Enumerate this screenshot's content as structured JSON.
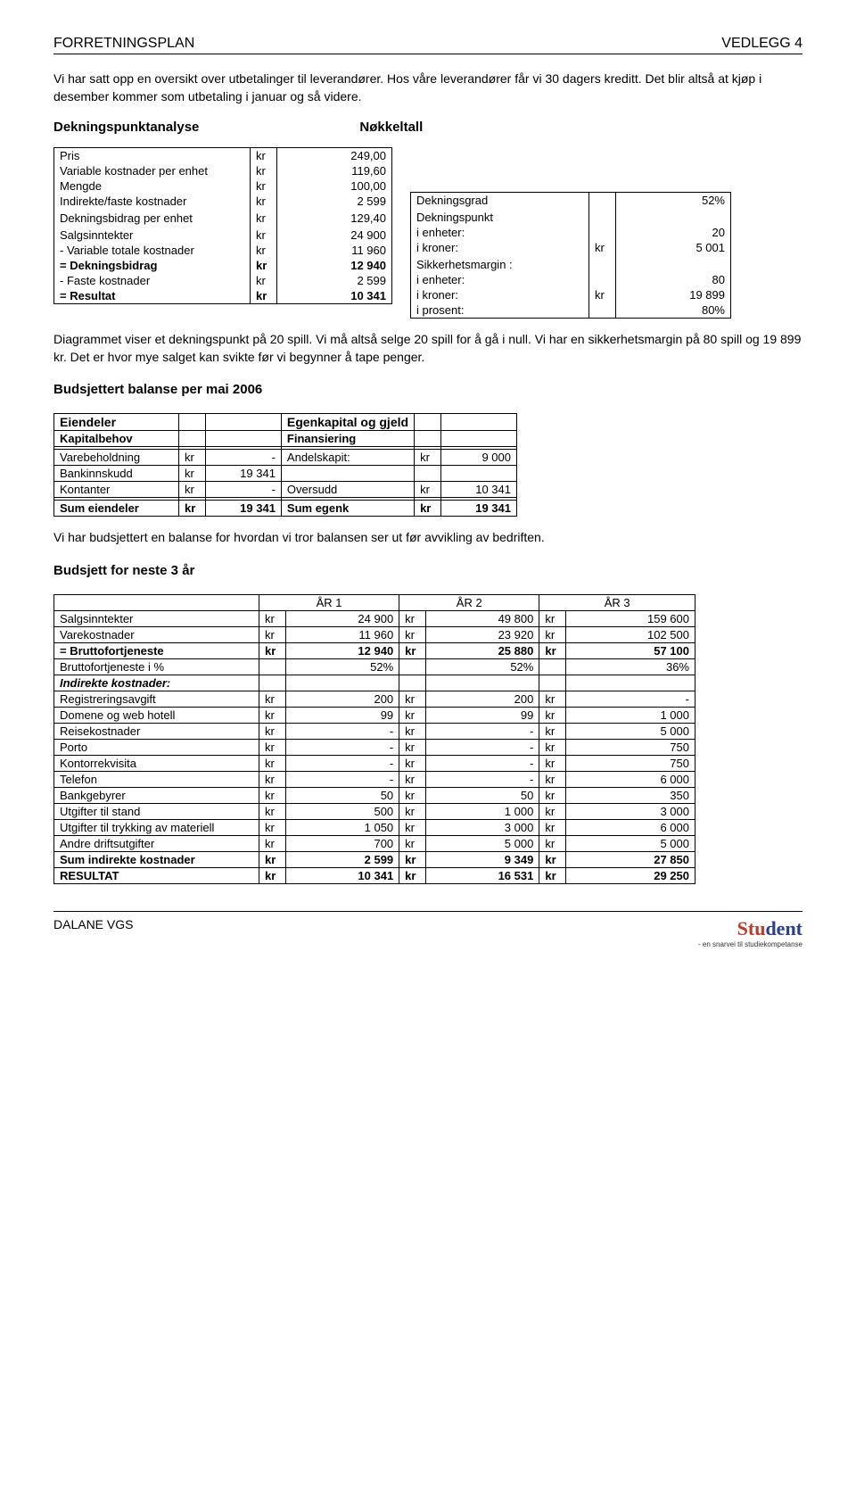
{
  "header": {
    "left": "FORRETNINGSPLAN",
    "right": "VEDLEGG 4"
  },
  "intro": "Vi har satt opp en oversikt over utbetalinger til leverandører. Hos våre leverandører får vi 30 dagers kreditt. Det blir altså at kjøp i desember kommer som utbetaling i januar og så videre.",
  "sec1": {
    "a": "Dekningspunktanalyse",
    "b": "Nøkkeltall"
  },
  "dek": {
    "rows": [
      [
        "Pris",
        "kr",
        "249,00"
      ],
      [
        "Variable kostnader per enhet",
        "kr",
        "119,60"
      ],
      [
        "Mengde",
        "kr",
        "100,00"
      ],
      [
        "Indirekte/faste kostnader",
        "kr",
        "2 599"
      ],
      [
        "",
        "",
        ""
      ],
      [
        "Dekningsbidrag per enhet",
        "kr",
        "129,40"
      ],
      [
        "",
        "",
        ""
      ],
      [
        "Salgsinntekter",
        "kr",
        "24 900"
      ],
      [
        "- Variable totale kostnader",
        "kr",
        "11 960"
      ],
      [
        "= Dekningsbidrag",
        "kr",
        "12 940"
      ],
      [
        "- Faste kostnader",
        "kr",
        "2 599"
      ],
      [
        "= Resultat",
        "kr",
        "10 341"
      ]
    ],
    "bold": [
      9,
      11
    ]
  },
  "nok": {
    "rows": [
      [
        "Dekningsgrad",
        "",
        "52%"
      ],
      [
        "",
        "",
        ""
      ],
      [
        "Dekningspunkt",
        "",
        ""
      ],
      [
        "   i enheter:",
        "",
        "20"
      ],
      [
        "   i kroner:",
        "kr",
        "5 001"
      ],
      [
        "",
        "",
        ""
      ],
      [
        "Sikkerhetsmargin :",
        "",
        ""
      ],
      [
        "   i enheter:",
        "",
        "80"
      ],
      [
        "   i kroner:",
        "kr",
        "19 899"
      ],
      [
        "   i prosent:",
        "",
        "80%"
      ]
    ]
  },
  "mid": "Diagrammet viser et dekningspunkt på 20 spill. Vi må altså selge 20 spill for å gå i null. Vi har en sikkerhetsmargin på 80 spill og 19 899 kr. Det er hvor mye salget kan svikte før vi begynner å tape penger.",
  "sec2": "Budsjettert balanse per mai 2006",
  "bal": {
    "head": [
      "Eiendeler",
      "",
      "",
      "Egenkapital og gjeld",
      "",
      ""
    ],
    "sub": [
      "Kapitalbehov",
      "",
      "",
      "Finansiering",
      "",
      ""
    ],
    "blank": [
      "",
      "",
      "",
      "",
      "",
      ""
    ],
    "rows": [
      [
        "Varebeholdning",
        "kr",
        "-",
        "Andelskapit:",
        "kr",
        "9 000"
      ],
      [
        "Bankinnskudd",
        "kr",
        "19 341",
        "",
        "",
        ""
      ],
      [
        "Kontanter",
        "kr",
        "-",
        "Oversudd",
        "kr",
        "10 341"
      ]
    ],
    "sum": [
      "Sum eiendeler",
      "kr",
      "19 341",
      "Sum egenk",
      "kr",
      "19 341"
    ]
  },
  "mid2": "Vi har budsjettert en balanse for hvordan vi tror balansen ser ut før avvikling av bedriften.",
  "sec3": "Budsjett for neste 3 år",
  "bud": {
    "head": [
      "",
      "ÅR 1",
      "",
      "ÅR 2",
      "",
      "ÅR 3",
      ""
    ],
    "rows": [
      [
        "Salgsinntekter",
        "kr",
        "24 900",
        "kr",
        "49 800",
        "kr",
        "159 600"
      ],
      [
        "Varekostnader",
        "kr",
        "11 960",
        "kr",
        "23 920",
        "kr",
        "102 500"
      ],
      [
        "= Bruttofortjeneste",
        "kr",
        "12 940",
        "kr",
        "25 880",
        "kr",
        "57 100"
      ],
      [
        "Bruttofortjeneste i %",
        "",
        "52%",
        "",
        "52%",
        "",
        "36%"
      ],
      [
        "Indirekte kostnader:",
        "",
        "",
        "",
        "",
        "",
        ""
      ],
      [
        "Registreringsavgift",
        "kr",
        "200",
        "kr",
        "200",
        "kr",
        "-"
      ],
      [
        "Domene og web hotell",
        "kr",
        "99",
        "kr",
        "99",
        "kr",
        "1 000"
      ],
      [
        "Reisekostnader",
        "kr",
        "-",
        "kr",
        "-",
        "kr",
        "5 000"
      ],
      [
        "Porto",
        "kr",
        "-",
        "kr",
        "-",
        "kr",
        "750"
      ],
      [
        "Kontorrekvisita",
        "kr",
        "-",
        "kr",
        "-",
        "kr",
        "750"
      ],
      [
        "Telefon",
        "kr",
        "-",
        "kr",
        "-",
        "kr",
        "6 000"
      ],
      [
        "Bankgebyrer",
        "kr",
        "50",
        "kr",
        "50",
        "kr",
        "350"
      ],
      [
        "Utgifter til stand",
        "kr",
        "500",
        "kr",
        "1 000",
        "kr",
        "3 000"
      ],
      [
        "Utgifter til trykking av materiell",
        "kr",
        "1 050",
        "kr",
        "3 000",
        "kr",
        "6 000"
      ],
      [
        "Andre driftsutgifter",
        "kr",
        "700",
        "kr",
        "5 000",
        "kr",
        "5 000"
      ],
      [
        "Sum indirekte kostnader",
        "kr",
        "2 599",
        "kr",
        "9 349",
        "kr",
        "27 850"
      ],
      [
        "RESULTAT",
        "kr",
        "10 341",
        "kr",
        "16 531",
        "kr",
        "29 250"
      ]
    ],
    "bold": [
      2,
      15,
      16
    ],
    "ital": [
      4
    ]
  },
  "footer": {
    "left": "DALANE VGS",
    "brand1": "Stu",
    "brand2": "dent",
    "sub": "- en snarvei til studiekompetanse"
  }
}
